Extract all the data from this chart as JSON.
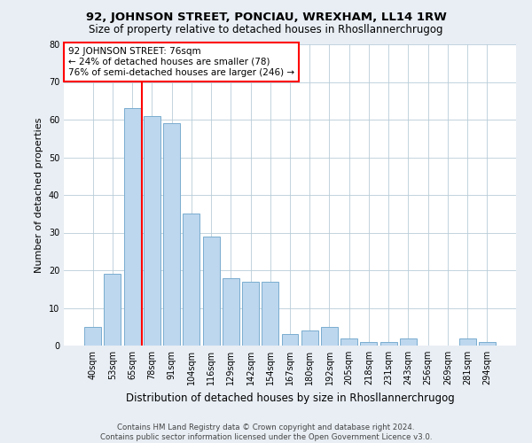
{
  "title": "92, JOHNSON STREET, PONCIAU, WREXHAM, LL14 1RW",
  "subtitle": "Size of property relative to detached houses in Rhosllannerchrugog",
  "xlabel": "Distribution of detached houses by size in Rhosllannerchrugog",
  "ylabel": "Number of detached properties",
  "categories": [
    "40sqm",
    "53sqm",
    "65sqm",
    "78sqm",
    "91sqm",
    "104sqm",
    "116sqm",
    "129sqm",
    "142sqm",
    "154sqm",
    "167sqm",
    "180sqm",
    "192sqm",
    "205sqm",
    "218sqm",
    "231sqm",
    "243sqm",
    "256sqm",
    "269sqm",
    "281sqm",
    "294sqm"
  ],
  "values": [
    5,
    19,
    63,
    61,
    59,
    35,
    29,
    18,
    17,
    17,
    3,
    4,
    5,
    2,
    1,
    1,
    2,
    0,
    0,
    2,
    1
  ],
  "bar_color": "#bdd7ee",
  "bar_edge_color": "#7aadcf",
  "vline_index": 3,
  "annotation_text_line1": "92 JOHNSON STREET: 76sqm",
  "annotation_text_line2": "← 24% of detached houses are smaller (78)",
  "annotation_text_line3": "76% of semi-detached houses are larger (246) →",
  "annotation_box_color": "white",
  "annotation_box_edge": "red",
  "vline_color": "red",
  "footer_line1": "Contains HM Land Registry data © Crown copyright and database right 2024.",
  "footer_line2": "Contains public sector information licensed under the Open Government Licence v3.0.",
  "ylim": [
    0,
    80
  ],
  "background_color": "#e8eef4",
  "plot_bg_color": "white",
  "title_fontsize": 9.5,
  "subtitle_fontsize": 8.5,
  "xlabel_fontsize": 8.5,
  "ylabel_fontsize": 8,
  "tick_fontsize": 7,
  "annotation_fontsize": 7.5,
  "footer_fontsize": 6.2
}
